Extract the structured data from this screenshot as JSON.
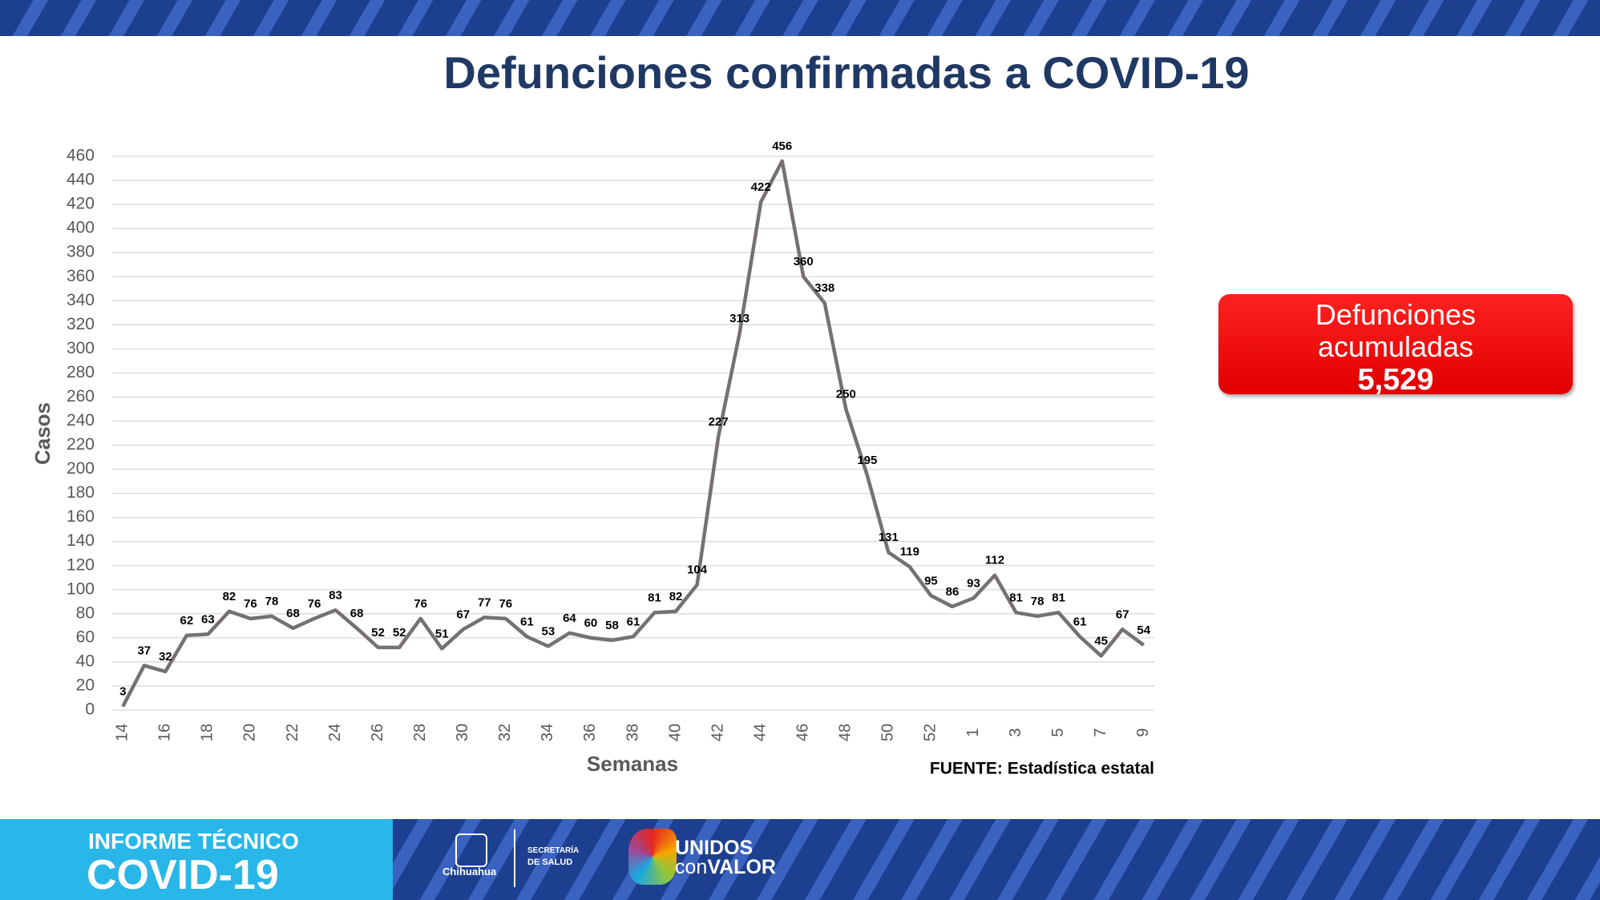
{
  "chart_data": {
    "type": "line",
    "title": "Defunciones confirmadas a COVID-19",
    "x_label": "Semanas",
    "y_label": "Casos",
    "source": "FUENTE: Estadística estatal",
    "categories": [
      "14",
      null,
      "16",
      null,
      "18",
      null,
      "20",
      null,
      "22",
      null,
      "24",
      null,
      "26",
      null,
      "28",
      null,
      "30",
      null,
      "32",
      null,
      "34",
      null,
      "36",
      null,
      "38",
      null,
      "40",
      null,
      "42",
      null,
      "44",
      null,
      "46",
      null,
      "48",
      null,
      "50",
      null,
      "52",
      null,
      "1",
      null,
      "3",
      null,
      "5",
      null,
      "7",
      null,
      "9"
    ],
    "values": [
      3,
      37,
      32,
      62,
      63,
      82,
      76,
      78,
      68,
      76,
      83,
      68,
      52,
      52,
      76,
      51,
      67,
      77,
      76,
      61,
      53,
      64,
      60,
      58,
      61,
      81,
      82,
      104,
      227,
      313,
      422,
      456,
      360,
      338,
      250,
      195,
      131,
      119,
      95,
      86,
      93,
      112,
      81,
      78,
      81,
      61,
      45,
      67,
      54
    ],
    "color": "#767171",
    "ylim": [
      0,
      460
    ],
    "yticks": [
      0,
      20,
      40,
      60,
      80,
      100,
      120,
      140,
      160,
      180,
      200,
      220,
      240,
      260,
      280,
      300,
      320,
      340,
      360,
      380,
      400,
      420,
      440,
      460
    ],
    "grid": true
  },
  "summary_box": {
    "label": "Defunciones acumuladas",
    "value": "5,529"
  },
  "footer": {
    "line1": "INFORME TÉCNICO",
    "line2": "COVID-19",
    "state": "Chihuahua",
    "dept1": "SECRETARÍA",
    "dept2": "DE SALUD",
    "brand1": "UNIDOS",
    "brand2a": "con",
    "brand2b": "VALOR"
  }
}
